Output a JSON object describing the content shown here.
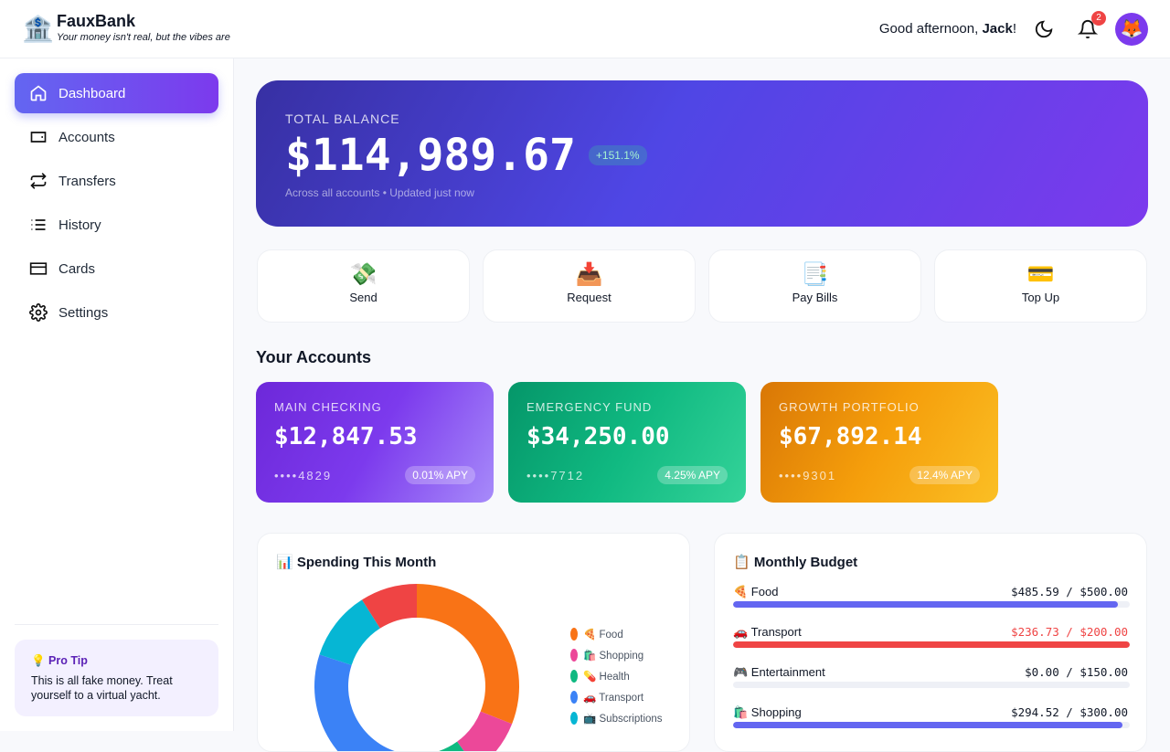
{
  "header": {
    "logo": "🏦",
    "brand": "FauxBank",
    "tagline": "Your money isn't real, but the vibes are",
    "greeting": "Good afternoon,",
    "name": "Jack",
    "punct": "!",
    "notifications": "2",
    "avatar": "🦊"
  },
  "nav": {
    "items": [
      {
        "label": "Dashboard",
        "active": true
      },
      {
        "label": "Accounts"
      },
      {
        "label": "Transfers"
      },
      {
        "label": "History"
      },
      {
        "label": "Cards"
      },
      {
        "label": "Settings"
      }
    ]
  },
  "tip": {
    "title": "💡 Pro Tip",
    "text": "This is all fake money. Treat yourself to a virtual yacht."
  },
  "balance": {
    "label": "TOTAL BALANCE",
    "amount": "$114,989.67",
    "change": "+151.1%",
    "note": "Across all accounts • Updated just now"
  },
  "actions": [
    {
      "icon": "💸",
      "label": "Send"
    },
    {
      "icon": "📥",
      "label": "Request"
    },
    {
      "icon": "📑",
      "label": "Pay Bills"
    },
    {
      "icon": "💳",
      "label": "Top Up"
    }
  ],
  "accounts": {
    "title": "Your Accounts",
    "items": [
      {
        "name": "MAIN CHECKING",
        "amount": "$12,847.53",
        "number": "••••4829",
        "apy": "0.01% APY"
      },
      {
        "name": "EMERGENCY FUND",
        "amount": "$34,250.00",
        "number": "••••7712",
        "apy": "4.25% APY"
      },
      {
        "name": "GROWTH PORTFOLIO",
        "amount": "$67,892.14",
        "number": "••••9301",
        "apy": "12.4% APY"
      }
    ]
  },
  "chart_data": {
    "type": "donut",
    "title": "📊 Spending This Month",
    "categories": [
      "🍕 Food",
      "🛍️ Shopping",
      "💊 Health",
      "🚗 Transport",
      "📺 Subscriptions",
      null
    ],
    "values": [
      31,
      9,
      12,
      28,
      11,
      9
    ],
    "colors": [
      "#f97316",
      "#ec4899",
      "#10b981",
      "#3b82f6",
      "#06b6d4",
      "#ef4444"
    ]
  },
  "budget": {
    "title": "📋 Monthly Budget",
    "items": [
      {
        "label": "🍕 Food",
        "amount": "$485.59 / $500.00",
        "spent": 485.59,
        "limit": 500
      },
      {
        "label": "🚗 Transport",
        "amount": "$236.73 / $200.00",
        "spent": 236.73,
        "limit": 200
      },
      {
        "label": "🎮 Entertainment",
        "amount": "$0.00 / $150.00",
        "spent": 0,
        "limit": 150
      },
      {
        "label": "🛍️ Shopping",
        "amount": "$294.52 / $300.00",
        "spent": 294.52,
        "limit": 300
      }
    ]
  }
}
